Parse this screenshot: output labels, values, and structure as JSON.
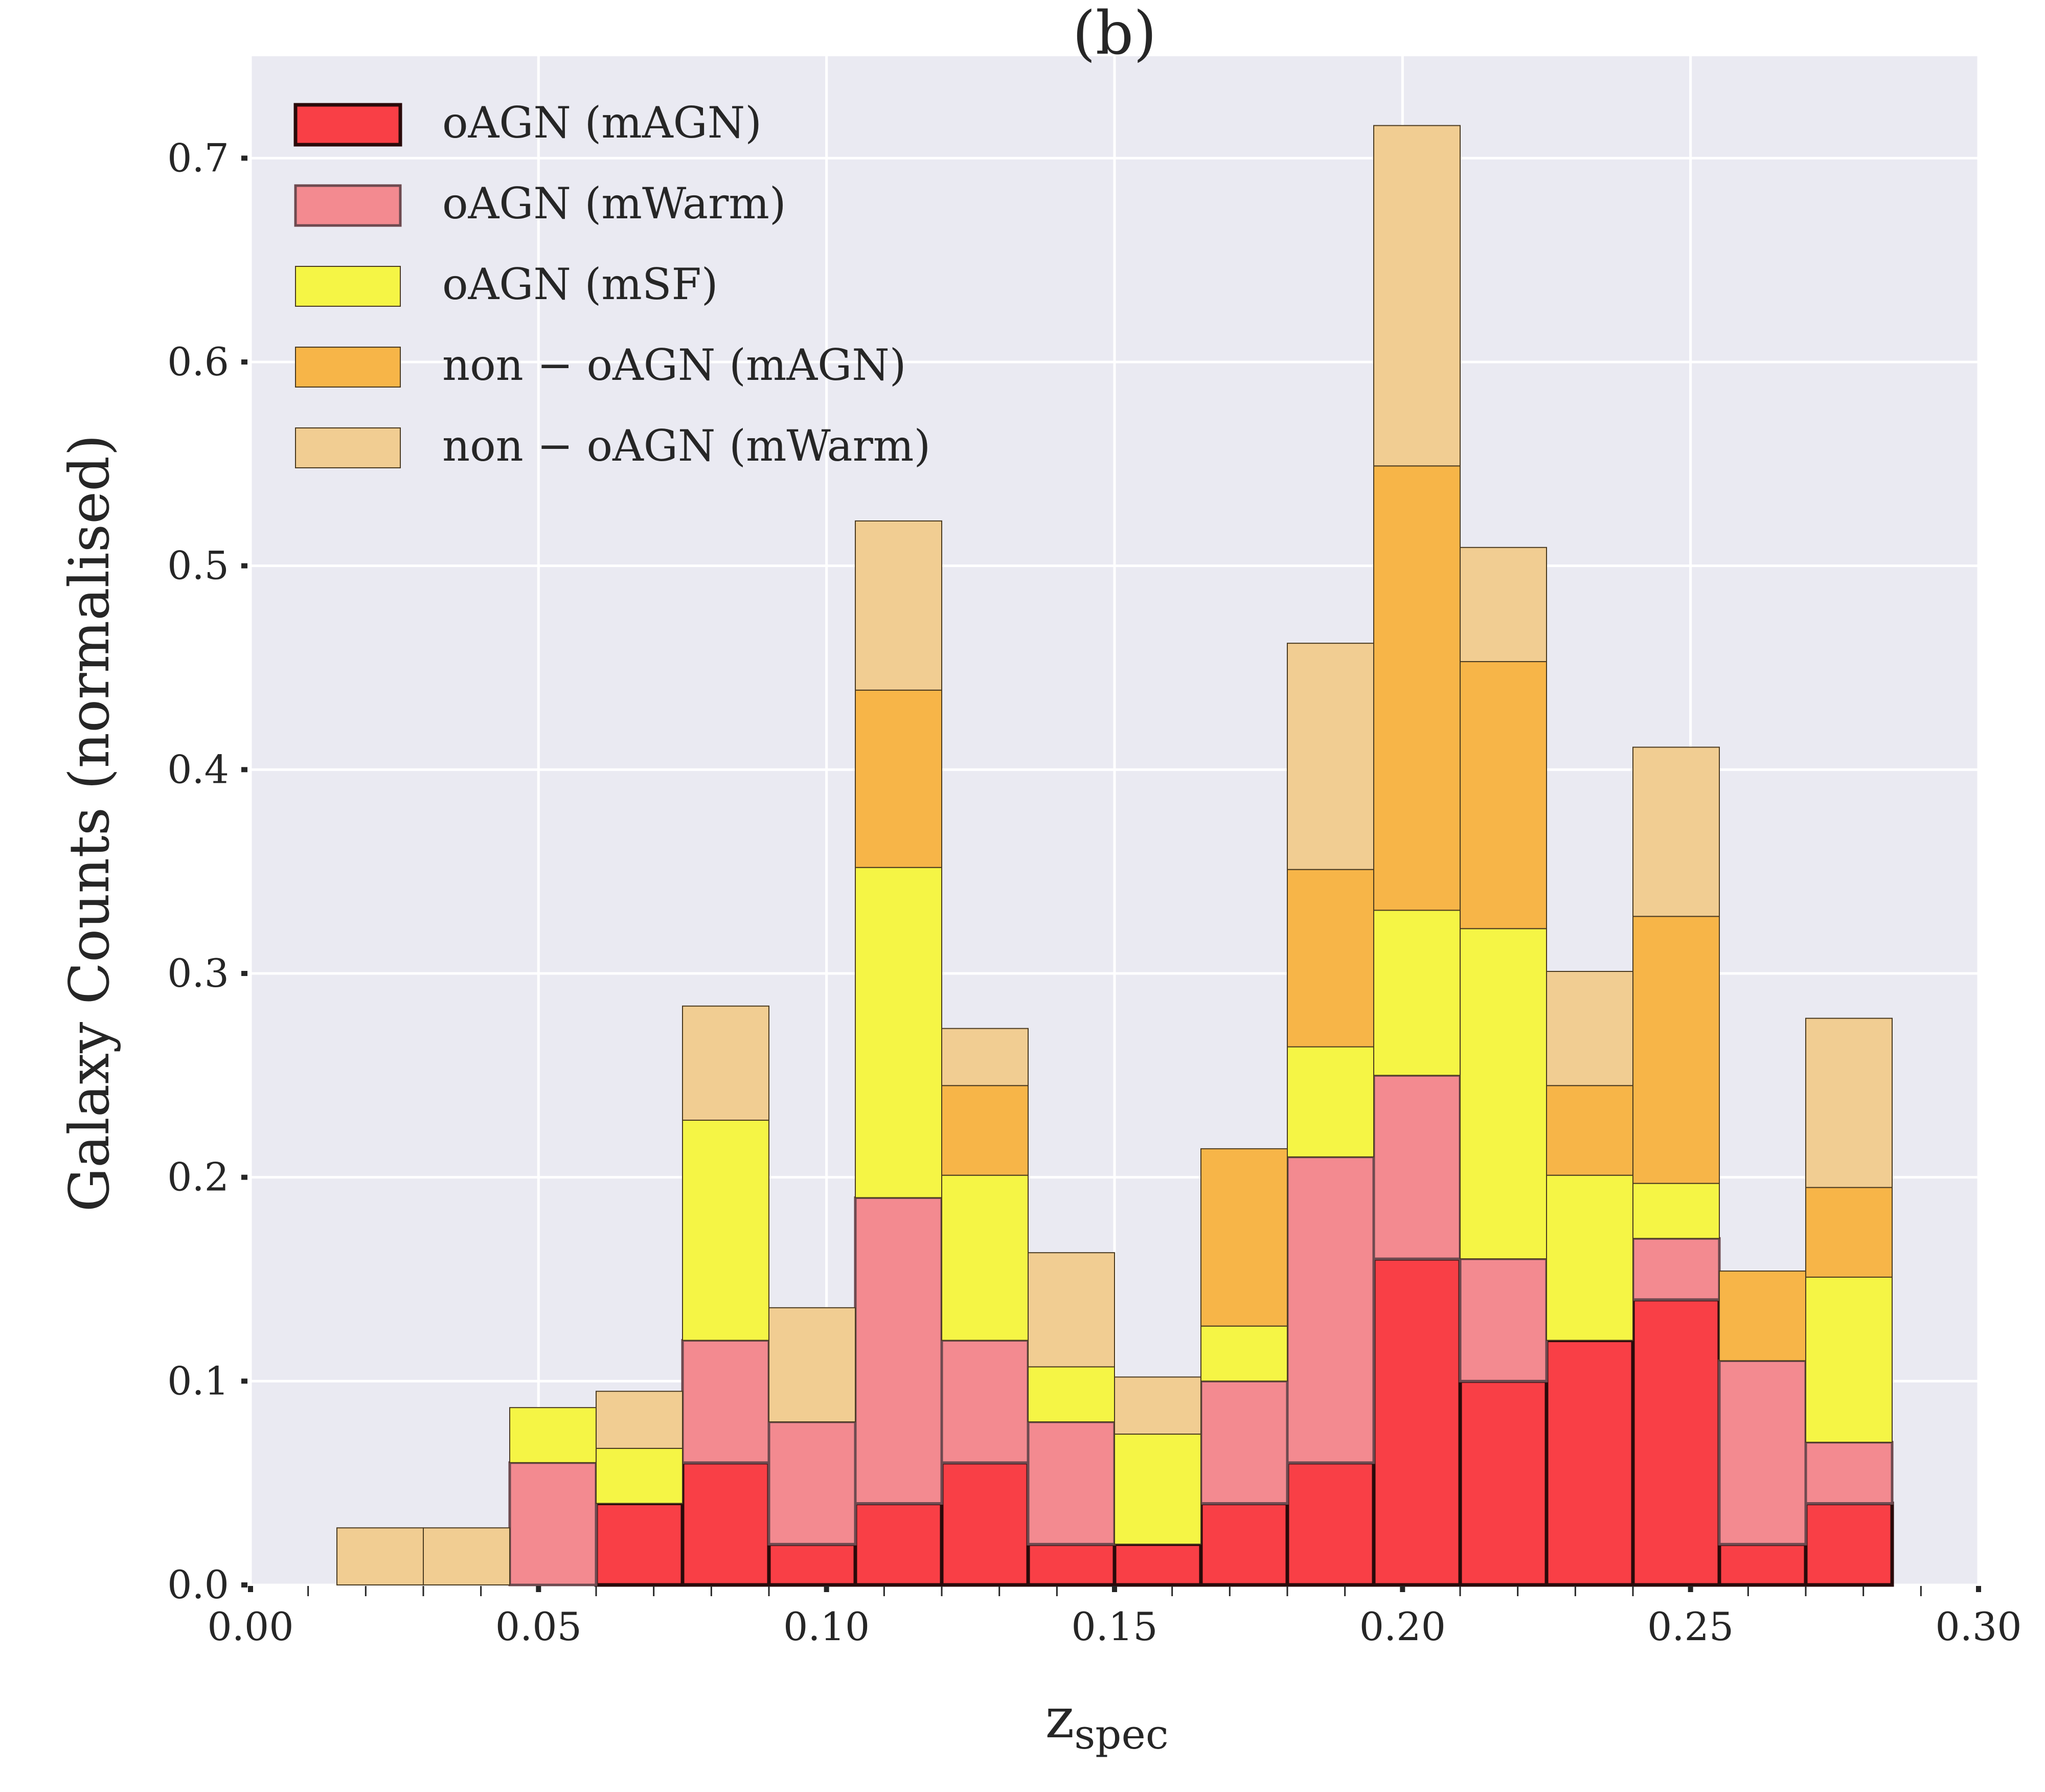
{
  "chart_data": {
    "type": "bar",
    "stacked": true,
    "title": "(b)",
    "xlabel": "z",
    "xlabel_subscript": "spec",
    "ylabel": "Galaxy Counts (normalised)",
    "xlim": [
      0.0,
      0.3
    ],
    "ylim": [
      0.0,
      0.75
    ],
    "xticks": [
      "0.00",
      "0.05",
      "0.10",
      "0.15",
      "0.20",
      "0.25",
      "0.30"
    ],
    "yticks": [
      "0.0",
      "0.1",
      "0.2",
      "0.3",
      "0.4",
      "0.5",
      "0.6",
      "0.7"
    ],
    "bin_edges": [
      0.015,
      0.03,
      0.045,
      0.06,
      0.075,
      0.09,
      0.105,
      0.12,
      0.135,
      0.15,
      0.165,
      0.18,
      0.195,
      0.21,
      0.225,
      0.24,
      0.255,
      0.27,
      0.285
    ],
    "grid": true,
    "legend_position": "top-left",
    "colors": {
      "background": "#eaeaf2",
      "grid": "#ffffff",
      "oAGN_mAGN": "#f93f46",
      "oAGN_mWarm": "#f38a90",
      "oAGN_mSF": "#f5f545",
      "non_oAGN_mAGN": "#f7b548",
      "non_oAGN_mWarm": "#f1cd92"
    },
    "series": [
      {
        "name": "oAGN (mAGN)",
        "key": "oAGN_mAGN",
        "edge": "heavy",
        "values": [
          0,
          0,
          0,
          0.04,
          0.06,
          0.02,
          0.04,
          0.06,
          0.02,
          0.02,
          0.04,
          0.06,
          0.16,
          0.1,
          0.12,
          0.14,
          0.02,
          0.04
        ]
      },
      {
        "name": "oAGN (mWarm)",
        "key": "oAGN_mWarm",
        "edge": "medium",
        "values": [
          0,
          0,
          0.06,
          0,
          0.06,
          0.06,
          0.15,
          0.06,
          0.06,
          0,
          0.06,
          0.15,
          0.09,
          0.06,
          0,
          0.03,
          0.09,
          0.03
        ]
      },
      {
        "name": "oAGN (mSF)",
        "key": "oAGN_mSF",
        "edge": "thin",
        "values": [
          0,
          0,
          0.027,
          0.027,
          0.108,
          0,
          0.162,
          0.081,
          0.027,
          0.054,
          0.027,
          0.054,
          0.081,
          0.162,
          0.081,
          0.027,
          0,
          0.081
        ]
      },
      {
        "name": "non − oAGN (mAGN)",
        "key": "non_oAGN_mAGN",
        "edge": "thin",
        "values": [
          0,
          0,
          0,
          0,
          0,
          0,
          0.087,
          0.044,
          0,
          0,
          0.087,
          0.087,
          0.218,
          0.131,
          0.044,
          0.131,
          0.044,
          0.044
        ]
      },
      {
        "name": "non − oAGN (mWarm)",
        "key": "non_oAGN_mWarm",
        "edge": "thin",
        "values": [
          0.028,
          0.028,
          0,
          0.028,
          0.056,
          0.056,
          0.083,
          0.028,
          0.056,
          0.028,
          0,
          0.111,
          0.167,
          0.056,
          0.056,
          0.083,
          0,
          0.083
        ]
      }
    ]
  }
}
